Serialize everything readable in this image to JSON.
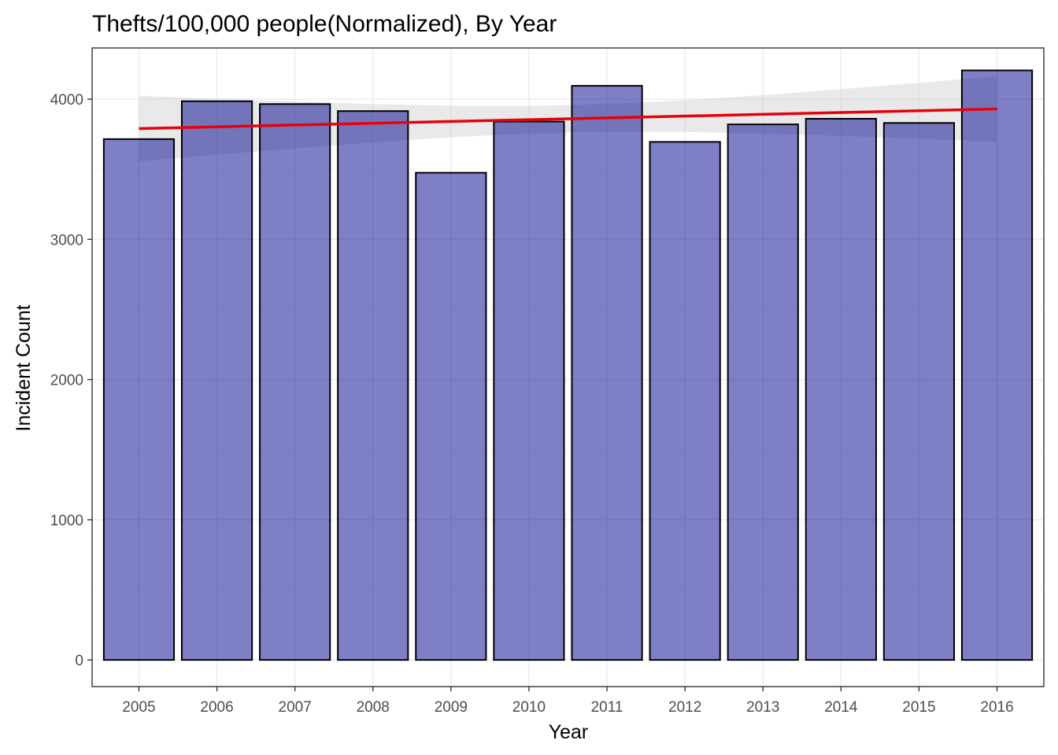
{
  "chart_data": {
    "type": "bar",
    "title": "Thefts/100,000 people(Normalized), By Year",
    "xlabel": "Year",
    "ylabel": "Incident Count",
    "categories": [
      "2005",
      "2006",
      "2007",
      "2008",
      "2009",
      "2010",
      "2011",
      "2012",
      "2013",
      "2014",
      "2015",
      "2016"
    ],
    "values": [
      3715,
      3985,
      3965,
      3915,
      3475,
      3840,
      4095,
      3695,
      3820,
      3860,
      3830,
      4205
    ],
    "ylim": [
      -190,
      4365
    ],
    "yticks": [
      0,
      1000,
      2000,
      3000,
      4000
    ],
    "grid": true,
    "legend": "none",
    "bar_color": "#00008B",
    "bar_opacity": 0.5,
    "trend_line": {
      "method": "linear",
      "color": "#e8000b",
      "start": 3790,
      "end": 3930,
      "ci_lower": [
        3560,
        3700
      ],
      "ci_upper": [
        4030,
        4165
      ]
    }
  }
}
